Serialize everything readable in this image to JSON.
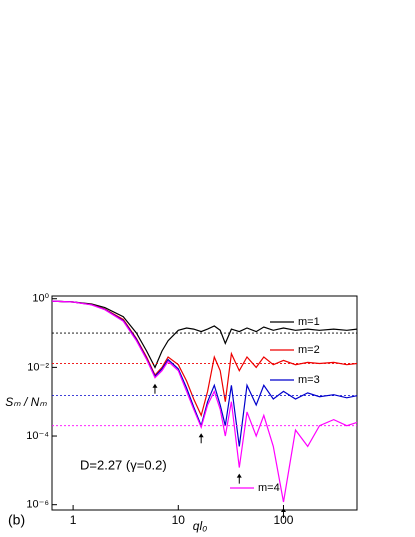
{
  "chart_data": {
    "type": "line",
    "x_label": "ql₀",
    "y_label": "Sₘ / Nₘ",
    "annotation": "D=2.27 (γ=0.2)",
    "panel_label": "(b)",
    "log_x": true,
    "log_y": true,
    "xlim": [
      0.63,
      500
    ],
    "ylim": [
      7e-07,
      1.2
    ],
    "xticks": [
      1,
      10,
      100
    ],
    "yticks": [
      {
        "value": 1,
        "label": "10⁰"
      },
      {
        "value": 0.01,
        "label": "10⁻²"
      },
      {
        "value": 0.0001,
        "label": "10⁻⁴"
      },
      {
        "value": 1e-06,
        "label": "10⁻⁶"
      }
    ],
    "x": [
      0.63,
      1,
      1.5,
      2,
      3,
      4,
      5,
      6,
      7,
      8,
      10,
      12,
      14,
      16.5,
      19,
      22,
      25,
      28,
      32,
      38,
      45,
      55,
      65,
      80,
      100,
      130,
      170,
      220,
      300,
      400,
      500
    ],
    "series": [
      {
        "name": "m=1",
        "color": "#000000",
        "reference": 0.1,
        "values": [
          0.85,
          0.8,
          0.7,
          0.55,
          0.3,
          0.1,
          0.03,
          0.01,
          0.03,
          0.06,
          0.12,
          0.14,
          0.13,
          0.11,
          0.13,
          0.16,
          0.12,
          0.05,
          0.13,
          0.11,
          0.14,
          0.11,
          0.15,
          0.12,
          0.14,
          0.12,
          0.13,
          0.12,
          0.13,
          0.12,
          0.13
        ]
      },
      {
        "name": "m=2",
        "color": "#ee0000",
        "reference": 0.013,
        "values": [
          0.85,
          0.8,
          0.68,
          0.5,
          0.25,
          0.07,
          0.02,
          0.006,
          0.01,
          0.02,
          0.012,
          0.004,
          0.0012,
          0.0004,
          0.002,
          0.02,
          0.008,
          0.001,
          0.025,
          0.008,
          0.02,
          0.01,
          0.02,
          0.012,
          0.016,
          0.012,
          0.014,
          0.013,
          0.014,
          0.012,
          0.013
        ]
      },
      {
        "name": "m=3",
        "color": "#0000cc",
        "reference": 0.0015,
        "values": [
          0.85,
          0.8,
          0.67,
          0.49,
          0.23,
          0.065,
          0.018,
          0.0055,
          0.009,
          0.017,
          0.009,
          0.0025,
          0.0007,
          0.0002,
          0.001,
          0.003,
          0.0008,
          0.0002,
          0.003,
          5e-05,
          0.003,
          0.0008,
          0.003,
          0.0012,
          0.002,
          0.0012,
          0.0018,
          0.0014,
          0.0016,
          0.0013,
          0.0015
        ]
      },
      {
        "name": "m=4",
        "color": "#ff00ff",
        "reference": 0.0002,
        "values": [
          0.85,
          0.8,
          0.66,
          0.48,
          0.22,
          0.06,
          0.017,
          0.005,
          0.008,
          0.015,
          0.008,
          0.002,
          0.0006,
          0.00018,
          0.0008,
          0.002,
          0.0006,
          0.0001,
          0.001,
          1.2e-05,
          0.0005,
          0.0001,
          0.0004,
          5e-05,
          1.2e-06,
          0.00015,
          5e-05,
          0.0002,
          0.0003,
          0.0002,
          0.00025
        ]
      }
    ],
    "arrows": [
      6,
      16.5,
      38,
      100
    ]
  }
}
